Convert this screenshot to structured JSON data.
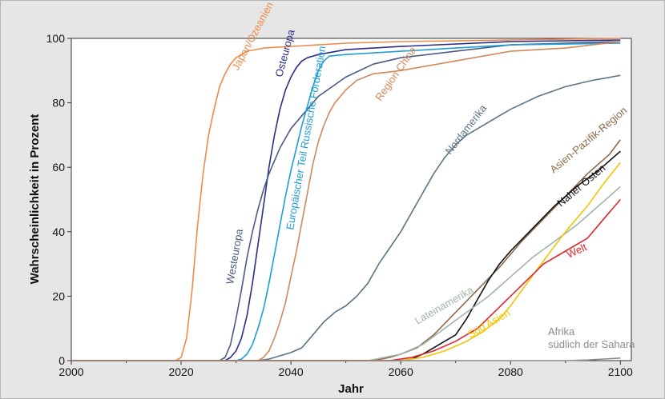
{
  "chart_data": {
    "type": "line",
    "xlabel": "Jahr",
    "ylabel": "Wahrscheinlichkeit  in Prozent",
    "xlim": [
      2000,
      2102
    ],
    "ylim": [
      0,
      100
    ],
    "x_ticks": [
      2000,
      2020,
      2040,
      2060,
      2080,
      2100
    ],
    "y_ticks": [
      0,
      20,
      40,
      60,
      80,
      100
    ],
    "grid": false,
    "background": "#e6e6e6",
    "plot_background": "#ffffff",
    "series": [
      {
        "name": "Japan/Ozeanien",
        "color": "#f08a4b",
        "points": [
          [
            2000,
            0
          ],
          [
            2019,
            0
          ],
          [
            2020,
            1
          ],
          [
            2021,
            7
          ],
          [
            2022,
            22
          ],
          [
            2023,
            42
          ],
          [
            2024,
            58
          ],
          [
            2025,
            70
          ],
          [
            2026,
            78
          ],
          [
            2027,
            85
          ],
          [
            2028,
            89
          ],
          [
            2029,
            92
          ],
          [
            2030,
            94
          ],
          [
            2032,
            96
          ],
          [
            2035,
            97
          ],
          [
            2040,
            97.5
          ],
          [
            2045,
            98
          ],
          [
            2050,
            98.5
          ],
          [
            2060,
            99
          ],
          [
            2080,
            99.5
          ],
          [
            2100,
            100
          ]
        ]
      },
      {
        "name": "Osteuropa",
        "color": "#2b2d87",
        "points": [
          [
            2000,
            0
          ],
          [
            2028,
            0
          ],
          [
            2029,
            1
          ],
          [
            2030,
            3
          ],
          [
            2031,
            7
          ],
          [
            2032,
            14
          ],
          [
            2033,
            24
          ],
          [
            2034,
            36
          ],
          [
            2035,
            48
          ],
          [
            2036,
            60
          ],
          [
            2037,
            70
          ],
          [
            2038,
            78
          ],
          [
            2039,
            84
          ],
          [
            2040,
            88
          ],
          [
            2041,
            91
          ],
          [
            2042,
            93
          ],
          [
            2043,
            94
          ],
          [
            2045,
            95
          ],
          [
            2050,
            96.5
          ],
          [
            2060,
            97.5
          ],
          [
            2080,
            99
          ],
          [
            2100,
            99.5
          ]
        ]
      },
      {
        "name": "Westeuropa",
        "color": "#4a5a82",
        "points": [
          [
            2000,
            0
          ],
          [
            2027,
            0
          ],
          [
            2028,
            1
          ],
          [
            2029,
            5
          ],
          [
            2030,
            13
          ],
          [
            2031,
            22
          ],
          [
            2032,
            32
          ],
          [
            2033,
            40
          ],
          [
            2034,
            47
          ],
          [
            2035,
            53
          ],
          [
            2036,
            58
          ],
          [
            2037,
            62
          ],
          [
            2038,
            66
          ],
          [
            2039,
            69
          ],
          [
            2040,
            72
          ],
          [
            2042,
            76
          ],
          [
            2045,
            82
          ],
          [
            2050,
            88
          ],
          [
            2055,
            92
          ],
          [
            2060,
            94
          ],
          [
            2070,
            96
          ],
          [
            2080,
            98
          ],
          [
            2100,
            99
          ]
        ]
      },
      {
        "name": "Europäischer Teil Russische Förderation",
        "color": "#1e9ed6",
        "points": [
          [
            2000,
            0
          ],
          [
            2030,
            0
          ],
          [
            2031,
            0.5
          ],
          [
            2032,
            2
          ],
          [
            2033,
            5
          ],
          [
            2034,
            10
          ],
          [
            2035,
            16
          ],
          [
            2036,
            24
          ],
          [
            2037,
            33
          ],
          [
            2038,
            42
          ],
          [
            2039,
            51
          ],
          [
            2040,
            59
          ],
          [
            2041,
            66
          ],
          [
            2042,
            73
          ],
          [
            2043,
            79
          ],
          [
            2044,
            85
          ],
          [
            2045,
            90
          ],
          [
            2046,
            93
          ],
          [
            2047,
            94.5
          ],
          [
            2050,
            95
          ],
          [
            2060,
            96
          ],
          [
            2070,
            97
          ],
          [
            2080,
            98
          ],
          [
            2100,
            98.5
          ]
        ]
      },
      {
        "name": "Region China",
        "color": "#d4885a",
        "points": [
          [
            2000,
            0
          ],
          [
            2034,
            0
          ],
          [
            2035,
            1
          ],
          [
            2036,
            3
          ],
          [
            2037,
            7
          ],
          [
            2038,
            12
          ],
          [
            2039,
            18
          ],
          [
            2040,
            26
          ],
          [
            2041,
            34
          ],
          [
            2042,
            43
          ],
          [
            2043,
            52
          ],
          [
            2044,
            61
          ],
          [
            2045,
            68
          ],
          [
            2046,
            73
          ],
          [
            2047,
            77
          ],
          [
            2048,
            80
          ],
          [
            2050,
            84
          ],
          [
            2052,
            87
          ],
          [
            2055,
            89
          ],
          [
            2060,
            90
          ],
          [
            2070,
            93
          ],
          [
            2080,
            96
          ],
          [
            2090,
            97
          ],
          [
            2100,
            99
          ]
        ]
      },
      {
        "name": "Nordamerika",
        "color": "#5c7484",
        "points": [
          [
            2000,
            0
          ],
          [
            2034,
            0
          ],
          [
            2036,
            0.5
          ],
          [
            2038,
            1.5
          ],
          [
            2040,
            2.5
          ],
          [
            2042,
            4
          ],
          [
            2044,
            8
          ],
          [
            2046,
            12
          ],
          [
            2048,
            15
          ],
          [
            2050,
            17
          ],
          [
            2052,
            20
          ],
          [
            2054,
            24
          ],
          [
            2056,
            30
          ],
          [
            2058,
            35
          ],
          [
            2060,
            40
          ],
          [
            2062,
            46
          ],
          [
            2064,
            52
          ],
          [
            2066,
            58
          ],
          [
            2068,
            63
          ],
          [
            2070,
            67
          ],
          [
            2072,
            70
          ],
          [
            2075,
            73
          ],
          [
            2078,
            76
          ],
          [
            2080,
            78
          ],
          [
            2085,
            82
          ],
          [
            2090,
            85
          ],
          [
            2095,
            87
          ],
          [
            2100,
            88.5
          ]
        ]
      },
      {
        "name": "Asien-Pazifik-Region",
        "color": "#8b6b4a",
        "points": [
          [
            2000,
            0
          ],
          [
            2055,
            0
          ],
          [
            2058,
            1
          ],
          [
            2060,
            2
          ],
          [
            2063,
            4
          ],
          [
            2066,
            8
          ],
          [
            2070,
            15
          ],
          [
            2074,
            22
          ],
          [
            2078,
            29
          ],
          [
            2082,
            37
          ],
          [
            2086,
            44
          ],
          [
            2090,
            51
          ],
          [
            2094,
            58
          ],
          [
            2098,
            64
          ],
          [
            2100,
            68.5
          ]
        ]
      },
      {
        "name": "Naher Osten",
        "color": "#111111",
        "points": [
          [
            2000,
            0
          ],
          [
            2060,
            0
          ],
          [
            2062,
            0.5
          ],
          [
            2064,
            2
          ],
          [
            2066,
            4
          ],
          [
            2068,
            6
          ],
          [
            2070,
            8
          ],
          [
            2072,
            13
          ],
          [
            2074,
            19
          ],
          [
            2076,
            25
          ],
          [
            2078,
            30
          ],
          [
            2080,
            34
          ],
          [
            2084,
            41
          ],
          [
            2088,
            48
          ],
          [
            2092,
            54
          ],
          [
            2096,
            59
          ],
          [
            2100,
            65
          ]
        ]
      },
      {
        "name": "Lateinamerika",
        "color": "#9fb5a8",
        "points": [
          [
            2000,
            0
          ],
          [
            2054,
            0
          ],
          [
            2057,
            1
          ],
          [
            2060,
            2
          ],
          [
            2064,
            5
          ],
          [
            2068,
            10
          ],
          [
            2072,
            15
          ],
          [
            2076,
            20
          ],
          [
            2080,
            26
          ],
          [
            2084,
            32
          ],
          [
            2088,
            37
          ],
          [
            2092,
            42
          ],
          [
            2096,
            48
          ],
          [
            2100,
            54
          ]
        ]
      },
      {
        "name": "Süd Asien",
        "color": "#f2c400",
        "points": [
          [
            2000,
            0
          ],
          [
            2060,
            0
          ],
          [
            2064,
            1
          ],
          [
            2068,
            3
          ],
          [
            2072,
            6
          ],
          [
            2075,
            9
          ],
          [
            2078,
            13
          ],
          [
            2080,
            17
          ],
          [
            2083,
            24
          ],
          [
            2086,
            31
          ],
          [
            2090,
            40
          ],
          [
            2094,
            48
          ],
          [
            2097,
            55
          ],
          [
            2100,
            61.5
          ]
        ]
      },
      {
        "name": "Welt",
        "color": "#e0262c",
        "points": [
          [
            2000,
            0
          ],
          [
            2058,
            0
          ],
          [
            2062,
            1
          ],
          [
            2066,
            3
          ],
          [
            2070,
            6
          ],
          [
            2074,
            10
          ],
          [
            2077,
            15
          ],
          [
            2080,
            20
          ],
          [
            2083,
            25
          ],
          [
            2086,
            30
          ],
          [
            2090,
            34
          ],
          [
            2094,
            38
          ],
          [
            2097,
            44
          ],
          [
            2100,
            50
          ]
        ]
      },
      {
        "name": "Afrika südlich der Sahara",
        "color": "#8c8c8c",
        "points": [
          [
            2000,
            0
          ],
          [
            2090,
            0
          ],
          [
            2094,
            0.2
          ],
          [
            2097,
            0.5
          ],
          [
            2100,
            0.8
          ]
        ]
      }
    ],
    "labels": [
      {
        "text": "Japan/Ozeanien",
        "series": "Japan/Ozeanien"
      },
      {
        "text": "Osteuropa",
        "series": "Osteuropa"
      },
      {
        "text": "Westeuropa",
        "series": "Westeuropa"
      },
      {
        "text": "Europäischer Teil Russische Förderation",
        "series": "Europäischer Teil Russische Förderation"
      },
      {
        "text": "Region China",
        "series": "Region China"
      },
      {
        "text": "Nordamerika",
        "series": "Nordamerika"
      },
      {
        "text": "Asien-Pazifik-Region",
        "series": "Asien-Pazifik-Region"
      },
      {
        "text": "Naher Osten",
        "series": "Naher Osten"
      },
      {
        "text": "Welt",
        "series": "Welt"
      },
      {
        "text": "Lateinamerika",
        "series": "Lateinamerika"
      },
      {
        "text": "Süd Asien",
        "series": "Süd Asien"
      },
      {
        "text": "Afrika",
        "series": "Afrika südlich der Sahara"
      },
      {
        "text": "südlich der Sahara",
        "series": "Afrika südlich der Sahara"
      }
    ]
  }
}
